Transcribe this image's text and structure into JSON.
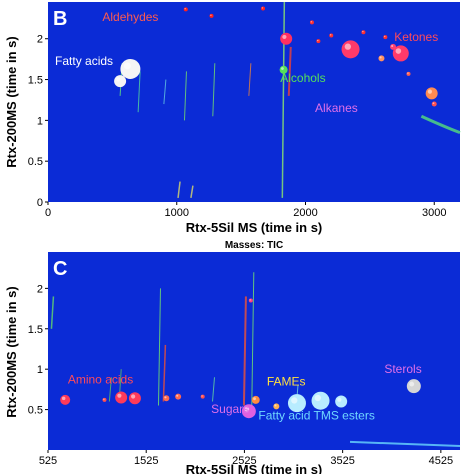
{
  "chart_data": [
    {
      "type": "scatter",
      "panel": "B",
      "xlabel": "Rtx-5Sil MS (time in s)",
      "ylabel": "Rtx-200MS (time in s)",
      "xlim": [
        0,
        3200
      ],
      "ylim": [
        0,
        2.45
      ],
      "xticks": [
        "0",
        "1000",
        "2000",
        "3000"
      ],
      "xtick_values": [
        0,
        1000,
        2000,
        3000
      ],
      "yticks": [
        "0",
        "0.5",
        "1",
        "1.5",
        "2"
      ],
      "ytick_values": [
        0,
        0.5,
        1,
        1.5,
        2
      ],
      "background": "#0b2bd6",
      "annotations": [
        {
          "text": "Aldehydes",
          "x": 640,
          "y": 2.22,
          "color": "#ff5a4e"
        },
        {
          "text": "Fatty acids",
          "x": 280,
          "y": 1.68,
          "color": "#ffffff"
        },
        {
          "text": "Alcohols",
          "x": 1980,
          "y": 1.47,
          "color": "#55e05a"
        },
        {
          "text": "Alkanes",
          "x": 2240,
          "y": 1.1,
          "color": "#e070e8"
        },
        {
          "text": "Ketones",
          "x": 2860,
          "y": 1.97,
          "color": "#ff4a5a"
        }
      ],
      "points": [
        {
          "x": 560,
          "y": 1.48,
          "size": 6,
          "color": "#f5f5f5"
        },
        {
          "x": 640,
          "y": 1.63,
          "size": 10,
          "color": "#f5f5f5"
        },
        {
          "x": 1850,
          "y": 2.0,
          "size": 6,
          "color": "#ff3060"
        },
        {
          "x": 1830,
          "y": 1.62,
          "size": 4,
          "color": "#55e05a"
        },
        {
          "x": 2350,
          "y": 1.87,
          "size": 9,
          "color": "#ff3a6a"
        },
        {
          "x": 2740,
          "y": 1.82,
          "size": 8,
          "color": "#ff3a6a"
        },
        {
          "x": 2980,
          "y": 1.33,
          "size": 6,
          "color": "#ff8a50"
        },
        {
          "x": 2590,
          "y": 1.76,
          "size": 3,
          "color": "#ff9060"
        },
        {
          "x": 2680,
          "y": 1.9,
          "size": 3,
          "color": "#ff4070"
        },
        {
          "x": 2800,
          "y": 1.57,
          "size": 2,
          "color": "#ff6050"
        },
        {
          "x": 3000,
          "y": 1.2,
          "size": 2.5,
          "color": "#ff5050"
        },
        {
          "x": 1070,
          "y": 2.36,
          "size": 2,
          "color": "#ff2020"
        },
        {
          "x": 1670,
          "y": 2.37,
          "size": 2,
          "color": "#ff2020"
        },
        {
          "x": 1270,
          "y": 2.28,
          "size": 2,
          "color": "#ff2020"
        },
        {
          "x": 2050,
          "y": 2.2,
          "size": 2,
          "color": "#ff3030"
        },
        {
          "x": 2200,
          "y": 2.04,
          "size": 2,
          "color": "#ff3030"
        },
        {
          "x": 2450,
          "y": 2.08,
          "size": 2,
          "color": "#ff3030"
        },
        {
          "x": 2620,
          "y": 2.02,
          "size": 2,
          "color": "#ff3030"
        },
        {
          "x": 2100,
          "y": 1.97,
          "size": 2,
          "color": "#ff3030"
        }
      ]
    },
    {
      "type": "scatter",
      "panel": "C",
      "title": "Masses:  TIC",
      "xlabel": "Rtx-5Sil MS (time in s)",
      "ylabel": "Rtx-200MS (time in s)",
      "xlim": [
        525,
        4720
      ],
      "ylim": [
        0,
        2.45
      ],
      "xticks": [
        "525",
        "1525",
        "2525",
        "3525",
        "4525"
      ],
      "xtick_values": [
        525,
        1525,
        2525,
        3525,
        4525
      ],
      "yticks": [
        "0.5",
        "1",
        "1.5",
        "2"
      ],
      "ytick_values": [
        0.5,
        1,
        1.5,
        2
      ],
      "background": "#0b2bd6",
      "annotations": [
        {
          "text": "Amino acids",
          "x": 1060,
          "y": 0.82,
          "color": "#ff4a5a"
        },
        {
          "text": "Sugars",
          "x": 2380,
          "y": 0.46,
          "color": "#e070e8"
        },
        {
          "text": "FAMEs",
          "x": 2950,
          "y": 0.8,
          "color": "#ffe040"
        },
        {
          "text": "Fatty acid TMS esters",
          "x": 3260,
          "y": 0.38,
          "color": "#6fd7ff"
        },
        {
          "text": "Sterols",
          "x": 4140,
          "y": 0.95,
          "color": "#e070e8"
        }
      ],
      "points": [
        {
          "x": 700,
          "y": 0.62,
          "size": 5,
          "color": "#ff3a5a"
        },
        {
          "x": 1270,
          "y": 0.65,
          "size": 6,
          "color": "#ff3a5a"
        },
        {
          "x": 1410,
          "y": 0.64,
          "size": 6,
          "color": "#ff3a5a"
        },
        {
          "x": 1730,
          "y": 0.64,
          "size": 3,
          "color": "#ff6a50"
        },
        {
          "x": 1850,
          "y": 0.66,
          "size": 3,
          "color": "#ff6a50"
        },
        {
          "x": 2570,
          "y": 0.48,
          "size": 7,
          "color": "#e060e0"
        },
        {
          "x": 2640,
          "y": 0.62,
          "size": 4,
          "color": "#ff8a40"
        },
        {
          "x": 2850,
          "y": 0.54,
          "size": 3,
          "color": "#ffb050"
        },
        {
          "x": 3060,
          "y": 0.58,
          "size": 9,
          "color": "#b8ecff"
        },
        {
          "x": 3300,
          "y": 0.61,
          "size": 9,
          "color": "#b8ecff"
        },
        {
          "x": 3510,
          "y": 0.6,
          "size": 6,
          "color": "#b8ecff"
        },
        {
          "x": 4250,
          "y": 0.79,
          "size": 7,
          "color": "#d6d6d6"
        },
        {
          "x": 2590,
          "y": 1.85,
          "size": 2,
          "color": "#ff4080"
        },
        {
          "x": 2100,
          "y": 0.66,
          "size": 2,
          "color": "#ff5050"
        },
        {
          "x": 1100,
          "y": 0.62,
          "size": 2,
          "color": "#ff5050"
        }
      ]
    }
  ]
}
